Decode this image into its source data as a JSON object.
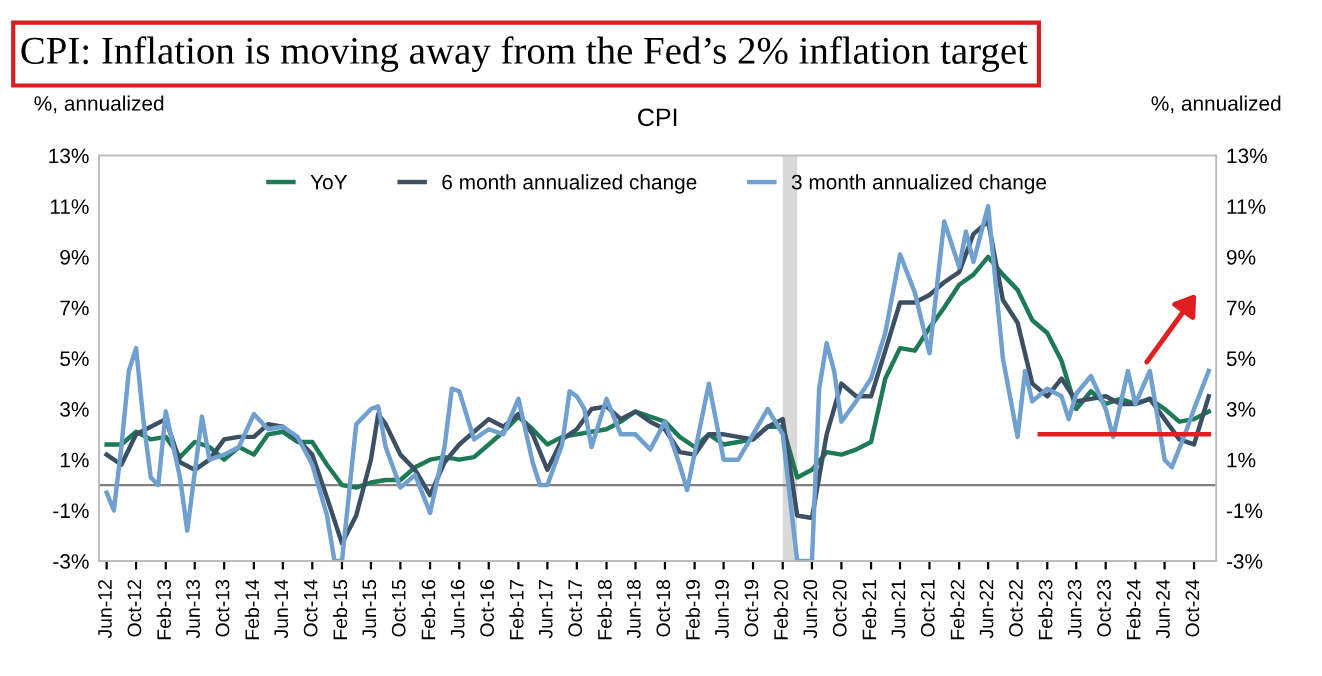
{
  "chart_data": {
    "type": "line",
    "title": "CPI: Inflation is moving away from the Fed’s 2% inflation target",
    "subtitle": "CPI",
    "ylabel": "%, annualized",
    "y2label": "%, annualized",
    "legend": "top",
    "grid": false,
    "ylim": [
      -3,
      13
    ],
    "yticks": [
      {
        "value": -3,
        "label": "-3%"
      },
      {
        "value": -1,
        "label": "-1%"
      },
      {
        "value": 1,
        "label": "1%"
      },
      {
        "value": 3,
        "label": "3%"
      },
      {
        "value": 5,
        "label": "5%"
      },
      {
        "value": 7,
        "label": "7%"
      },
      {
        "value": 9,
        "label": "9%"
      },
      {
        "value": 11,
        "label": "11%"
      },
      {
        "value": 13,
        "label": "13%"
      }
    ],
    "y2lim": [
      -3,
      13
    ],
    "y2ticks": [
      {
        "value": -3,
        "label": "-3%"
      },
      {
        "value": -1,
        "label": "-1%"
      },
      {
        "value": 1,
        "label": "1%"
      },
      {
        "value": 3,
        "label": "3%"
      },
      {
        "value": 5,
        "label": "5%"
      },
      {
        "value": 7,
        "label": "7%"
      },
      {
        "value": 9,
        "label": "9%"
      },
      {
        "value": 11,
        "label": "11%"
      },
      {
        "value": 13,
        "label": "13%"
      }
    ],
    "xlim": [
      "2012-05",
      "2025-01"
    ],
    "xticks": [
      {
        "value": "2012-06",
        "label": "Jun-12"
      },
      {
        "value": "2012-10",
        "label": "Oct-12"
      },
      {
        "value": "2013-02",
        "label": "Feb-13"
      },
      {
        "value": "2013-06",
        "label": "Jun-13"
      },
      {
        "value": "2013-10",
        "label": "Oct-13"
      },
      {
        "value": "2014-02",
        "label": "Feb-14"
      },
      {
        "value": "2014-06",
        "label": "Jun-14"
      },
      {
        "value": "2014-10",
        "label": "Oct-14"
      },
      {
        "value": "2015-02",
        "label": "Feb-15"
      },
      {
        "value": "2015-06",
        "label": "Jun-15"
      },
      {
        "value": "2015-10",
        "label": "Oct-15"
      },
      {
        "value": "2016-02",
        "label": "Feb-16"
      },
      {
        "value": "2016-06",
        "label": "Jun-16"
      },
      {
        "value": "2016-10",
        "label": "Oct-16"
      },
      {
        "value": "2017-02",
        "label": "Feb-17"
      },
      {
        "value": "2017-06",
        "label": "Jun-17"
      },
      {
        "value": "2017-10",
        "label": "Oct-17"
      },
      {
        "value": "2018-02",
        "label": "Feb-18"
      },
      {
        "value": "2018-06",
        "label": "Jun-18"
      },
      {
        "value": "2018-10",
        "label": "Oct-18"
      },
      {
        "value": "2019-02",
        "label": "Feb-19"
      },
      {
        "value": "2019-06",
        "label": "Jun-19"
      },
      {
        "value": "2019-10",
        "label": "Oct-19"
      },
      {
        "value": "2020-02",
        "label": "Feb-20"
      },
      {
        "value": "2020-06",
        "label": "Jun-20"
      },
      {
        "value": "2020-10",
        "label": "Oct-20"
      },
      {
        "value": "2021-02",
        "label": "Feb-21"
      },
      {
        "value": "2021-06",
        "label": "Jun-21"
      },
      {
        "value": "2021-10",
        "label": "Oct-21"
      },
      {
        "value": "2022-02",
        "label": "Feb-22"
      },
      {
        "value": "2022-06",
        "label": "Jun-22"
      },
      {
        "value": "2022-10",
        "label": "Oct-22"
      },
      {
        "value": "2023-02",
        "label": "Feb-23"
      },
      {
        "value": "2023-06",
        "label": "Jun-23"
      },
      {
        "value": "2023-10",
        "label": "Oct-23"
      },
      {
        "value": "2024-02",
        "label": "Feb-24"
      },
      {
        "value": "2024-06",
        "label": "Jun-24"
      },
      {
        "value": "2024-10",
        "label": "Oct-24"
      }
    ],
    "ref_lines": [
      {
        "axis": "y",
        "value": 0,
        "color": "#808080"
      }
    ],
    "bands": [
      {
        "axis": "x",
        "from": "2020-02",
        "to": "2020-04",
        "color": "#d9d9d9"
      }
    ],
    "series": [
      {
        "name": "YoY",
        "color": "#1e7a55",
        "x": [
          "2012-06",
          "2012-08",
          "2012-10",
          "2012-12",
          "2013-02",
          "2013-04",
          "2013-06",
          "2013-08",
          "2013-10",
          "2013-12",
          "2014-02",
          "2014-04",
          "2014-06",
          "2014-08",
          "2014-10",
          "2014-12",
          "2015-02",
          "2015-04",
          "2015-06",
          "2015-08",
          "2015-10",
          "2015-12",
          "2016-02",
          "2016-04",
          "2016-06",
          "2016-08",
          "2016-10",
          "2016-12",
          "2017-02",
          "2017-04",
          "2017-06",
          "2017-08",
          "2017-10",
          "2017-12",
          "2018-02",
          "2018-04",
          "2018-06",
          "2018-08",
          "2018-10",
          "2018-12",
          "2019-02",
          "2019-04",
          "2019-06",
          "2019-08",
          "2019-10",
          "2019-12",
          "2020-02",
          "2020-04",
          "2020-06",
          "2020-08",
          "2020-10",
          "2020-12",
          "2021-02",
          "2021-04",
          "2021-06",
          "2021-08",
          "2021-10",
          "2021-12",
          "2022-02",
          "2022-04",
          "2022-06",
          "2022-08",
          "2022-10",
          "2022-12",
          "2023-02",
          "2023-04",
          "2023-06",
          "2023-08",
          "2023-10",
          "2023-12",
          "2024-02",
          "2024-04",
          "2024-06",
          "2024-08",
          "2024-10",
          "2024-12"
        ],
        "values": [
          1.6,
          1.6,
          2.1,
          1.8,
          1.9,
          1.1,
          1.7,
          1.5,
          1.0,
          1.5,
          1.2,
          2.0,
          2.1,
          1.7,
          1.7,
          0.8,
          0.0,
          -0.1,
          0.1,
          0.2,
          0.2,
          0.7,
          1.0,
          1.1,
          1.0,
          1.1,
          1.6,
          2.1,
          2.7,
          2.2,
          1.6,
          1.9,
          2.0,
          2.1,
          2.2,
          2.5,
          2.9,
          2.7,
          2.5,
          1.9,
          1.5,
          2.0,
          1.6,
          1.7,
          1.8,
          2.3,
          2.3,
          0.3,
          0.6,
          1.3,
          1.2,
          1.4,
          1.7,
          4.2,
          5.4,
          5.3,
          6.2,
          7.0,
          7.9,
          8.3,
          9.0,
          8.3,
          7.7,
          6.5,
          6.0,
          4.9,
          3.0,
          3.7,
          3.2,
          3.4,
          3.2,
          3.4,
          3.0,
          2.5,
          2.6,
          2.9
        ]
      },
      {
        "name": "6 month annualized change",
        "color": "#3d4f63",
        "x": [
          "2012-06",
          "2012-08",
          "2012-10",
          "2012-12",
          "2013-02",
          "2013-04",
          "2013-06",
          "2013-08",
          "2013-10",
          "2013-12",
          "2014-02",
          "2014-04",
          "2014-06",
          "2014-08",
          "2014-10",
          "2014-12",
          "2015-02",
          "2015-04",
          "2015-06",
          "2015-07",
          "2015-08",
          "2015-10",
          "2015-12",
          "2016-02",
          "2016-04",
          "2016-06",
          "2016-08",
          "2016-10",
          "2016-12",
          "2017-02",
          "2017-04",
          "2017-06",
          "2017-08",
          "2017-10",
          "2017-12",
          "2018-02",
          "2018-04",
          "2018-06",
          "2018-08",
          "2018-10",
          "2018-12",
          "2019-02",
          "2019-04",
          "2019-06",
          "2019-08",
          "2019-10",
          "2019-12",
          "2020-02",
          "2020-04",
          "2020-06",
          "2020-08",
          "2020-10",
          "2020-12",
          "2021-02",
          "2021-04",
          "2021-06",
          "2021-08",
          "2021-10",
          "2021-12",
          "2022-02",
          "2022-04",
          "2022-06",
          "2022-08",
          "2022-10",
          "2022-12",
          "2023-02",
          "2023-04",
          "2023-06",
          "2023-08",
          "2023-10",
          "2023-12",
          "2024-02",
          "2024-04",
          "2024-06",
          "2024-08",
          "2024-10",
          "2024-12"
        ],
        "values": [
          1.2,
          0.8,
          2.0,
          2.3,
          2.6,
          0.9,
          0.6,
          1.0,
          1.8,
          1.9,
          1.9,
          2.4,
          2.3,
          1.8,
          1.2,
          -0.5,
          -2.3,
          -1.2,
          1.0,
          2.8,
          2.4,
          1.2,
          0.6,
          -0.4,
          0.9,
          1.6,
          2.1,
          2.6,
          2.3,
          2.8,
          2.0,
          0.6,
          1.8,
          2.2,
          3.0,
          3.1,
          2.6,
          2.9,
          2.5,
          2.2,
          1.3,
          1.2,
          2.0,
          2.0,
          1.9,
          1.8,
          2.3,
          2.6,
          -1.2,
          -1.3,
          2.0,
          4.0,
          3.5,
          3.5,
          5.3,
          7.2,
          7.2,
          7.5,
          8.0,
          8.4,
          9.9,
          10.4,
          7.3,
          6.4,
          4.0,
          3.5,
          4.2,
          3.3,
          3.4,
          3.5,
          3.2,
          3.2,
          3.4,
          2.6,
          1.8,
          1.6,
          3.5
        ]
      },
      {
        "name": "3 month annualized change",
        "color": "#6fa0cf",
        "x": [
          "2012-06",
          "2012-07",
          "2012-08",
          "2012-09",
          "2012-10",
          "2012-11",
          "2012-12",
          "2013-01",
          "2013-02",
          "2013-04",
          "2013-05",
          "2013-07",
          "2013-08",
          "2013-10",
          "2013-12",
          "2014-02",
          "2014-04",
          "2014-06",
          "2014-08",
          "2014-10",
          "2014-12",
          "2015-01",
          "2015-02",
          "2015-04",
          "2015-06",
          "2015-07",
          "2015-08",
          "2015-10",
          "2015-12",
          "2016-02",
          "2016-04",
          "2016-05",
          "2016-06",
          "2016-08",
          "2016-10",
          "2016-12",
          "2017-02",
          "2017-04",
          "2017-05",
          "2017-06",
          "2017-08",
          "2017-09",
          "2017-10",
          "2017-11",
          "2017-12",
          "2018-02",
          "2018-04",
          "2018-06",
          "2018-08",
          "2018-10",
          "2018-12",
          "2019-01",
          "2019-04",
          "2019-06",
          "2019-08",
          "2019-10",
          "2019-12",
          "2020-02",
          "2020-04",
          "2020-05",
          "2020-06",
          "2020-07",
          "2020-08",
          "2020-09",
          "2020-10",
          "2020-12",
          "2021-02",
          "2021-04",
          "2021-06",
          "2021-08",
          "2021-10",
          "2021-12",
          "2022-02",
          "2022-03",
          "2022-04",
          "2022-06",
          "2022-08",
          "2022-10",
          "2022-11",
          "2022-12",
          "2023-02",
          "2023-04",
          "2023-05",
          "2023-06",
          "2023-08",
          "2023-10",
          "2023-11",
          "2024-01",
          "2024-02",
          "2024-04",
          "2024-06",
          "2024-07",
          "2024-09",
          "2024-10",
          "2024-12"
        ],
        "values": [
          -0.3,
          -1.0,
          1.5,
          4.5,
          5.4,
          2.5,
          0.3,
          0.0,
          2.9,
          0.3,
          -1.8,
          2.7,
          1.0,
          1.2,
          1.5,
          2.8,
          2.2,
          2.3,
          1.9,
          0.8,
          -1.2,
          -3.0,
          -3.0,
          2.4,
          3.0,
          3.1,
          1.5,
          -0.1,
          0.4,
          -1.1,
          1.5,
          3.8,
          3.7,
          1.8,
          2.2,
          2.0,
          3.4,
          0.9,
          0.0,
          0.0,
          1.6,
          3.7,
          3.5,
          3.0,
          1.5,
          3.4,
          2.0,
          2.0,
          1.4,
          2.5,
          0.8,
          -0.2,
          4.0,
          1.0,
          1.0,
          2.0,
          3.0,
          2.0,
          -3.0,
          -3.0,
          -3.0,
          3.8,
          5.6,
          4.5,
          2.5,
          3.3,
          4.2,
          6.0,
          9.1,
          7.6,
          5.2,
          10.4,
          8.6,
          10.0,
          8.8,
          11.0,
          5.0,
          1.9,
          4.5,
          3.3,
          3.8,
          3.5,
          2.6,
          3.6,
          4.3,
          3.0,
          1.9,
          4.5,
          3.2,
          4.5,
          1.0,
          0.7,
          2.2,
          3.0,
          4.5
        ]
      },
      {
        "type": "line",
        "color": "#e02020",
        "x": [
          "2023-01",
          "2024-12"
        ],
        "values": [
          2,
          2
        ]
      }
    ]
  }
}
